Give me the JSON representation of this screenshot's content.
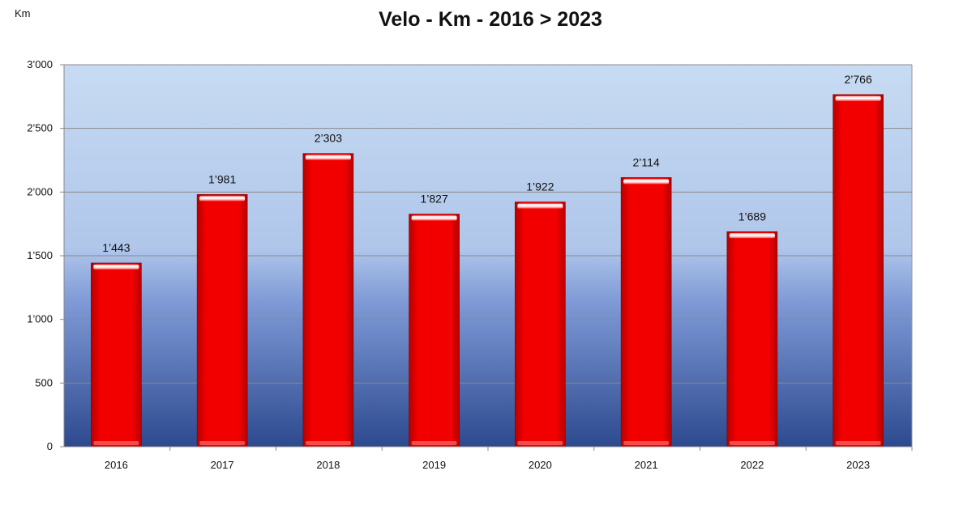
{
  "chart_data": {
    "type": "bar",
    "title": "Velo - Km - 2016  >  2023",
    "ylabel": "Km",
    "xlabel": "",
    "categories": [
      "2016",
      "2017",
      "2018",
      "2019",
      "2020",
      "2021",
      "2022",
      "2023"
    ],
    "values": [
      1443,
      1981,
      2303,
      1827,
      1922,
      2114,
      1689,
      2766
    ],
    "value_labels": [
      "1’443",
      "1’981",
      "2’303",
      "1’827",
      "1’922",
      "2’114",
      "1’689",
      "2’766"
    ],
    "ylim": [
      0,
      3000
    ],
    "yticks": [
      0,
      500,
      1000,
      1500,
      2000,
      2500,
      3000
    ],
    "ytick_labels": [
      "0",
      "500",
      "1’000",
      "1’500",
      "2’000",
      "2’500",
      "3’000"
    ],
    "grid": true,
    "legend": "none",
    "colors": {
      "bar": "#ee0000",
      "plot_bg_top": "#c6d9f1",
      "plot_bg_bottom": "#2f4b91",
      "gridline": "#8a8a8a"
    }
  }
}
